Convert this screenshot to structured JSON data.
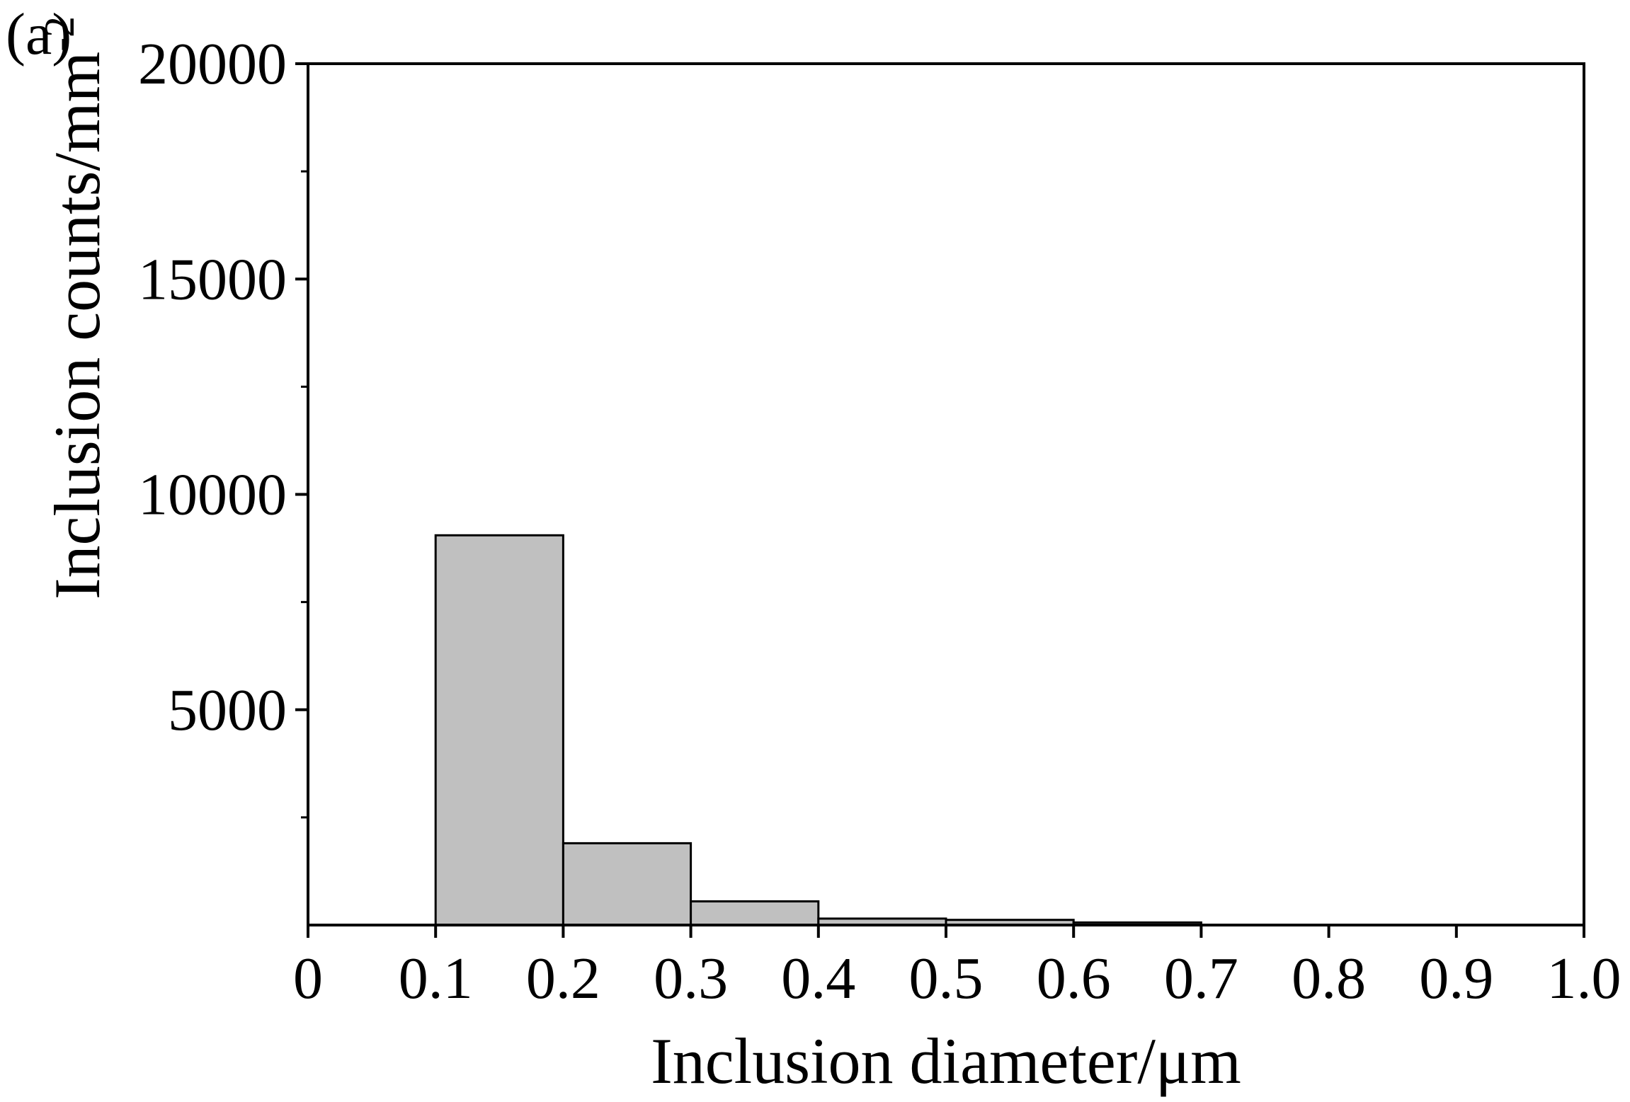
{
  "chart_data": {
    "type": "bar",
    "panel_label": "(a)",
    "title": "",
    "xlabel": "Inclusion diameter/μm",
    "ylabel": "Inclusion counts/mm",
    "ylabel_superscript": "-2",
    "xlim": [
      0,
      1.0
    ],
    "ylim": [
      0,
      20000
    ],
    "x_ticks": [
      "0",
      "0.1",
      "0.2",
      "0.3",
      "0.4",
      "0.5",
      "0.6",
      "0.7",
      "0.8",
      "0.9",
      "1.0"
    ],
    "y_ticks": [
      "5000",
      "10000",
      "15000",
      "20000"
    ],
    "bins": [
      {
        "x_start": 0.1,
        "x_end": 0.2,
        "value": 9050
      },
      {
        "x_start": 0.2,
        "x_end": 0.3,
        "value": 1900
      },
      {
        "x_start": 0.3,
        "x_end": 0.4,
        "value": 550
      },
      {
        "x_start": 0.4,
        "x_end": 0.5,
        "value": 150
      },
      {
        "x_start": 0.5,
        "x_end": 0.6,
        "value": 120
      },
      {
        "x_start": 0.6,
        "x_end": 0.7,
        "value": 60
      }
    ],
    "grid": false,
    "colors": {
      "bar_fill": "#c0c0c0",
      "bar_stroke": "#000000",
      "axis": "#000000"
    }
  }
}
